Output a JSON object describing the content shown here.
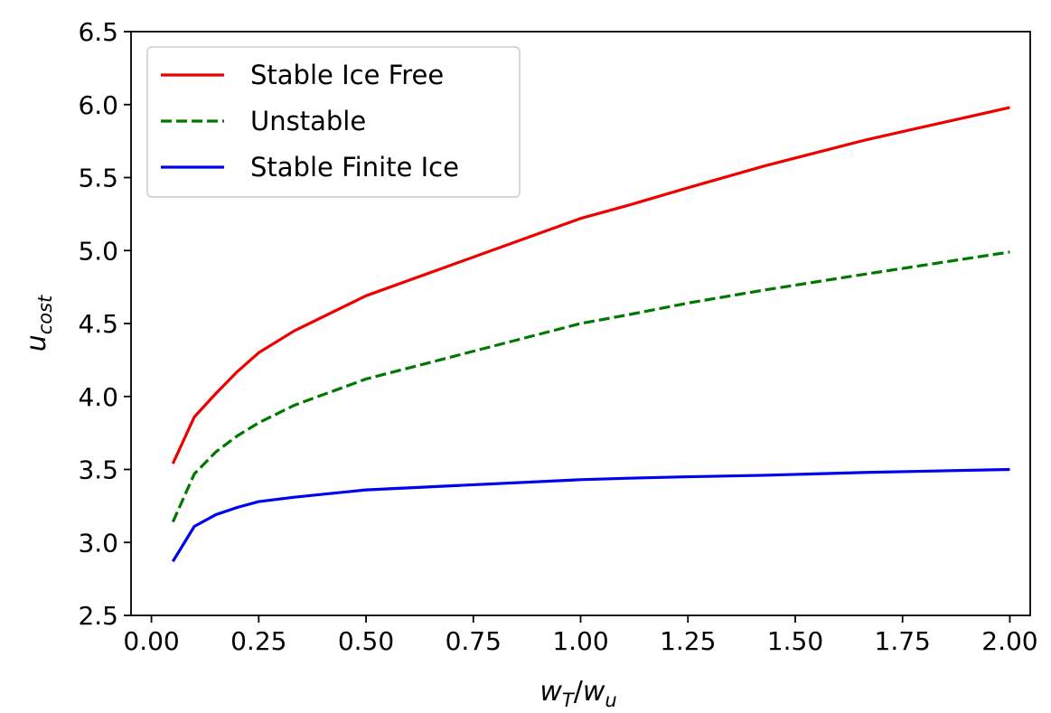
{
  "chart_data": {
    "type": "line",
    "title": "",
    "xlabel": {
      "base": "w",
      "sub": "T",
      "sep": "/",
      "base2": "w",
      "sub2": "u"
    },
    "ylabel": {
      "base": "u",
      "sub": "cost"
    },
    "xlim": [
      -0.0475,
      2.0475
    ],
    "ylim": [
      2.5,
      6.5
    ],
    "xticks": [
      "0.00",
      "0.25",
      "0.50",
      "0.75",
      "1.00",
      "1.25",
      "1.50",
      "1.75",
      "2.00"
    ],
    "yticks": [
      "2.5",
      "3.0",
      "3.5",
      "4.0",
      "4.5",
      "5.0",
      "5.5",
      "6.0",
      "6.5"
    ],
    "grid": false,
    "legend_position": "top-left",
    "x": [
      0.05,
      0.1,
      0.15,
      0.2,
      0.25,
      0.333,
      0.5,
      1.0,
      1.111,
      1.25,
      1.429,
      1.667,
      2.0
    ],
    "series": [
      {
        "name": "Stable Ice Free",
        "color": "#ee0000",
        "dash": "solid",
        "values": [
          3.54,
          3.86,
          4.02,
          4.17,
          4.3,
          4.45,
          4.69,
          5.22,
          5.31,
          5.43,
          5.58,
          5.76,
          5.98
        ]
      },
      {
        "name": "Unstable",
        "color": "#007700",
        "dash": "dashed",
        "values": [
          3.14,
          3.47,
          3.62,
          3.73,
          3.82,
          3.94,
          4.12,
          4.5,
          4.56,
          4.64,
          4.73,
          4.84,
          4.99
        ]
      },
      {
        "name": "Stable Finite Ice",
        "color": "#0000ee",
        "dash": "solid",
        "values": [
          2.87,
          3.11,
          3.19,
          3.24,
          3.28,
          3.31,
          3.36,
          3.43,
          3.44,
          3.45,
          3.46,
          3.48,
          3.5
        ]
      }
    ]
  }
}
